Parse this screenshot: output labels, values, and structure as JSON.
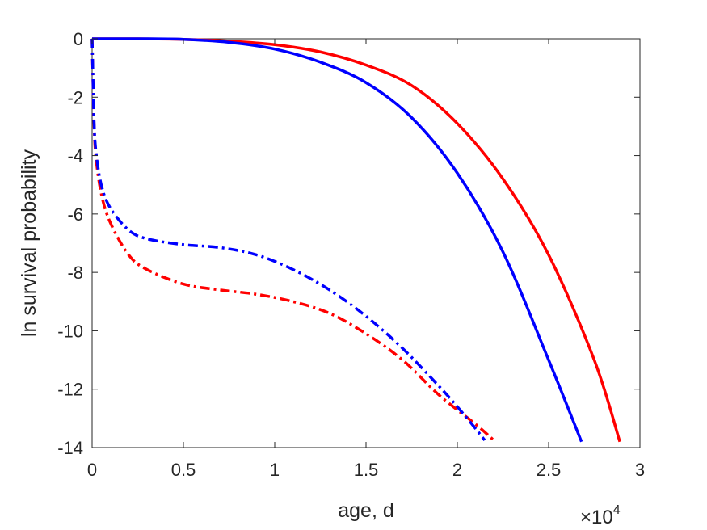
{
  "chart_data": {
    "type": "line",
    "title": "",
    "xlabel": "age, d",
    "ylabel": "ln survival probability",
    "x_multiplier_label": {
      "base": "×10",
      "exponent": "4"
    },
    "xlim": [
      0,
      3
    ],
    "ylim": [
      -14,
      0
    ],
    "x_ticks": [
      0,
      0.5,
      1,
      1.5,
      2,
      2.5,
      3
    ],
    "x_tick_labels": [
      "0",
      "0.5",
      "1",
      "1.5",
      "2",
      "2.5",
      "3"
    ],
    "y_ticks": [
      0,
      -2,
      -4,
      -6,
      -8,
      -10,
      -12,
      -14
    ],
    "y_tick_labels": [
      "0",
      "-2",
      "-4",
      "-6",
      "-8",
      "-10",
      "-12",
      "-14"
    ],
    "grid": false,
    "legend": "none",
    "series": [
      {
        "color": "#ff0000",
        "line_style": "solid",
        "x": [
          0,
          0.25,
          0.5,
          0.75,
          1.0,
          1.25,
          1.5,
          1.75,
          2.0,
          2.25,
          2.5,
          2.75,
          2.89
        ],
        "y": [
          0,
          0,
          -0.02,
          -0.08,
          -0.2,
          -0.45,
          -0.9,
          -1.6,
          -2.9,
          -4.8,
          -7.4,
          -11.0,
          -13.8
        ]
      },
      {
        "color": "#0000ff",
        "line_style": "solid",
        "x": [
          0,
          0.25,
          0.5,
          0.75,
          1.0,
          1.25,
          1.5,
          1.75,
          2.0,
          2.25,
          2.5,
          2.68
        ],
        "y": [
          0,
          0,
          -0.02,
          -0.12,
          -0.35,
          -0.8,
          -1.5,
          -2.7,
          -4.6,
          -7.3,
          -11.0,
          -13.8
        ]
      },
      {
        "color": "#ff0000",
        "line_style": "dashdot",
        "x": [
          0,
          0.005,
          0.01,
          0.02,
          0.05,
          0.1,
          0.2,
          0.3,
          0.5,
          0.7,
          0.9,
          1.1,
          1.3,
          1.5,
          1.7,
          1.9,
          2.1,
          2.2
        ],
        "y": [
          0,
          -1.5,
          -2.8,
          -4.0,
          -5.3,
          -6.3,
          -7.4,
          -7.9,
          -8.4,
          -8.6,
          -8.75,
          -9.0,
          -9.4,
          -10.1,
          -11.0,
          -12.2,
          -13.2,
          -13.75
        ]
      },
      {
        "color": "#0000ff",
        "line_style": "dashdot",
        "x": [
          0,
          0.005,
          0.01,
          0.02,
          0.05,
          0.1,
          0.2,
          0.3,
          0.5,
          0.7,
          0.9,
          1.1,
          1.3,
          1.5,
          1.7,
          1.9,
          2.0,
          2.1,
          2.15
        ],
        "y": [
          0,
          -1.4,
          -2.7,
          -3.8,
          -5.0,
          -5.8,
          -6.55,
          -6.85,
          -7.05,
          -7.15,
          -7.4,
          -7.9,
          -8.6,
          -9.5,
          -10.6,
          -11.9,
          -12.6,
          -13.35,
          -13.75
        ]
      }
    ]
  }
}
